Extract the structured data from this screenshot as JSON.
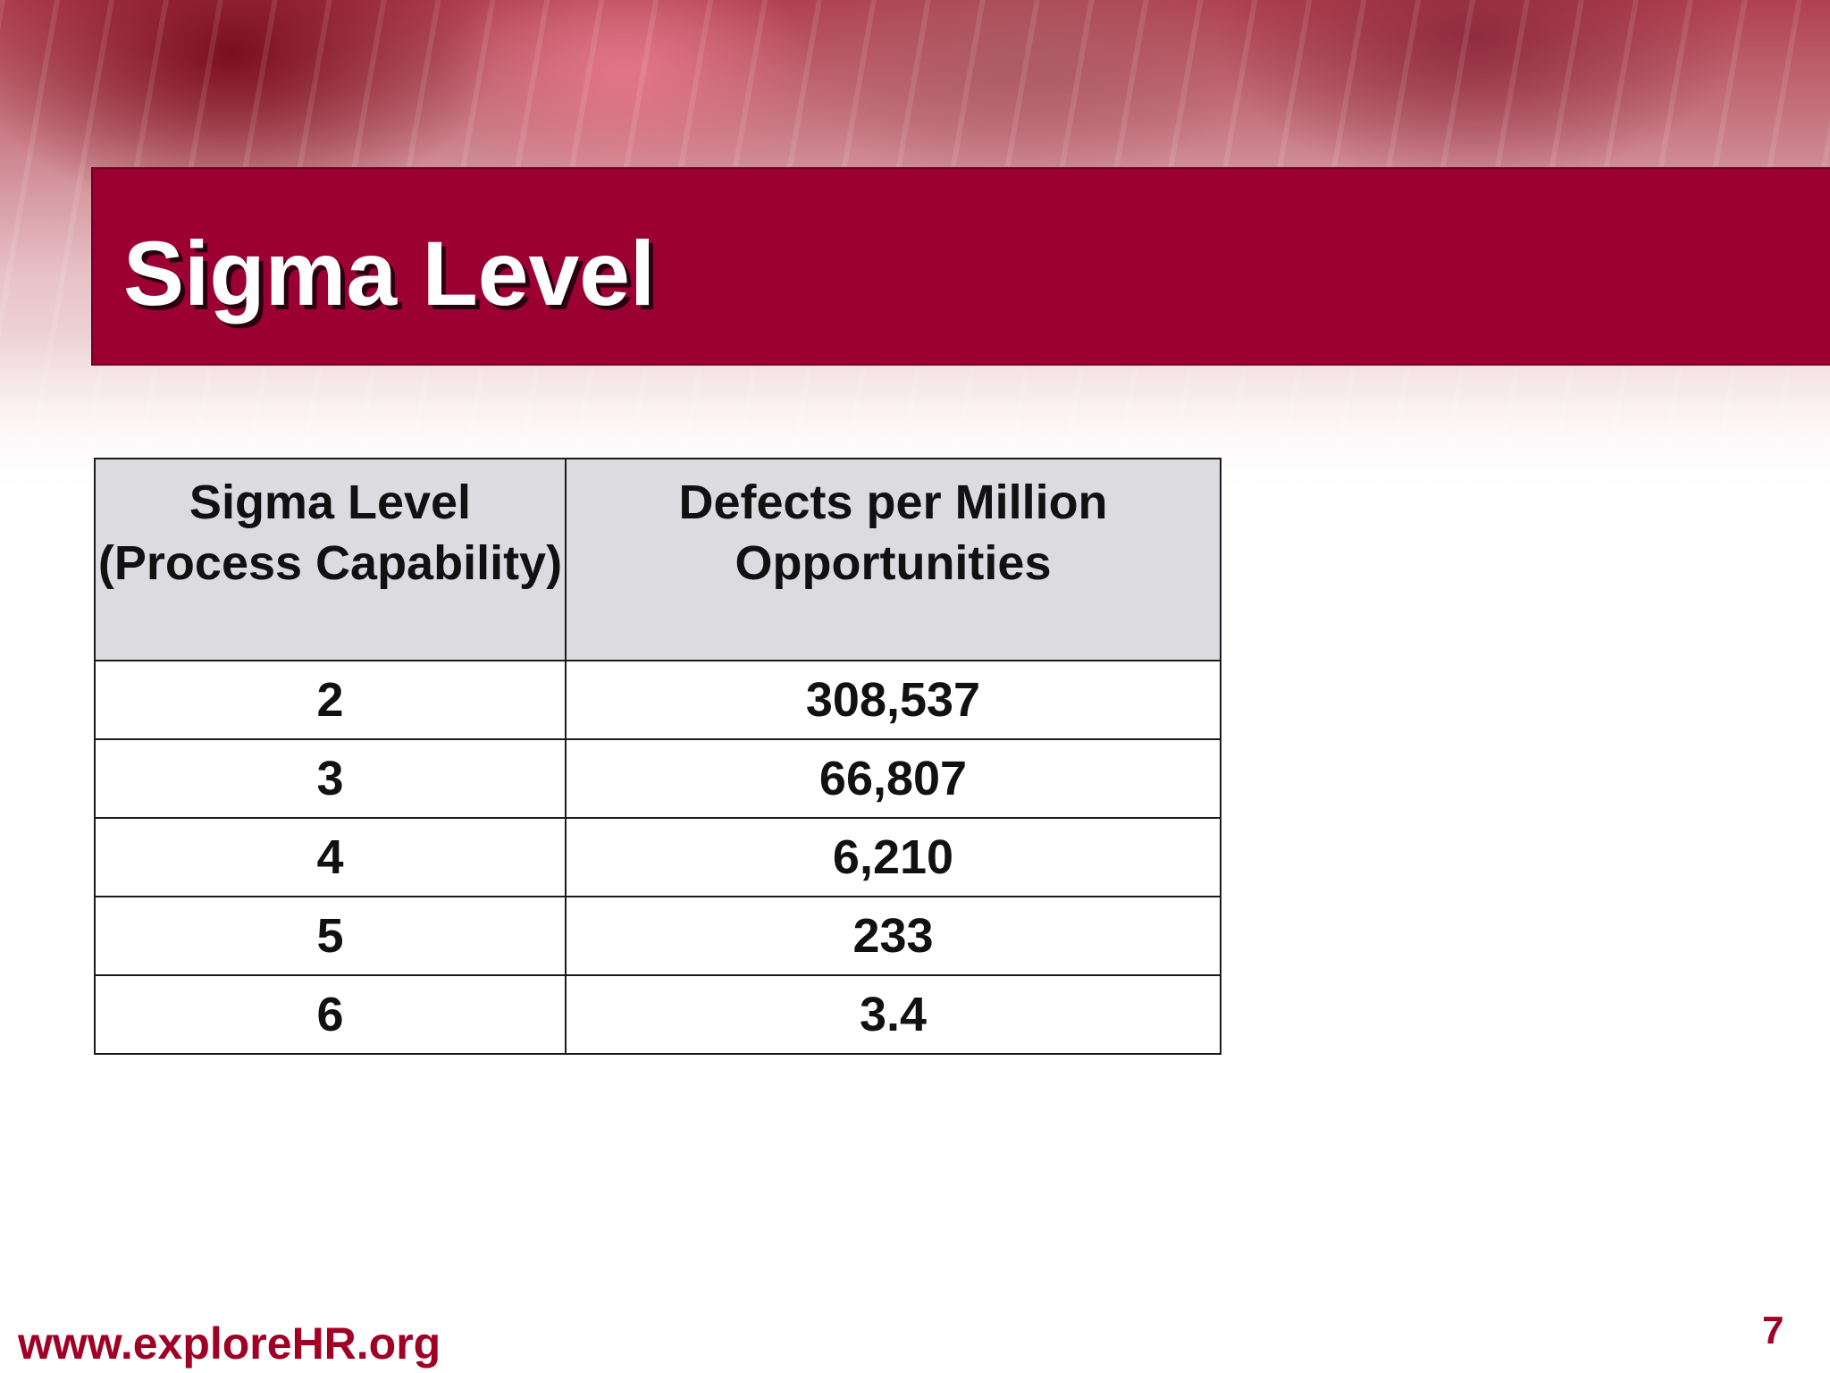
{
  "slide": {
    "title": "Sigma Level",
    "footer_url": "www.exploreHR.org",
    "page_number": "7"
  },
  "table": {
    "headers": [
      "Sigma Level (Process Capability)",
      "Defects per Million Opportunities"
    ],
    "rows": [
      [
        "2",
        "308,537"
      ],
      [
        "3",
        "66,807"
      ],
      [
        "4",
        "6,210"
      ],
      [
        "5",
        "233"
      ],
      [
        "6",
        "3.4"
      ]
    ]
  },
  "colors": {
    "title_band": "#9c0033",
    "header_fill": "#dcdbe0",
    "footer_text": "#a00024"
  }
}
